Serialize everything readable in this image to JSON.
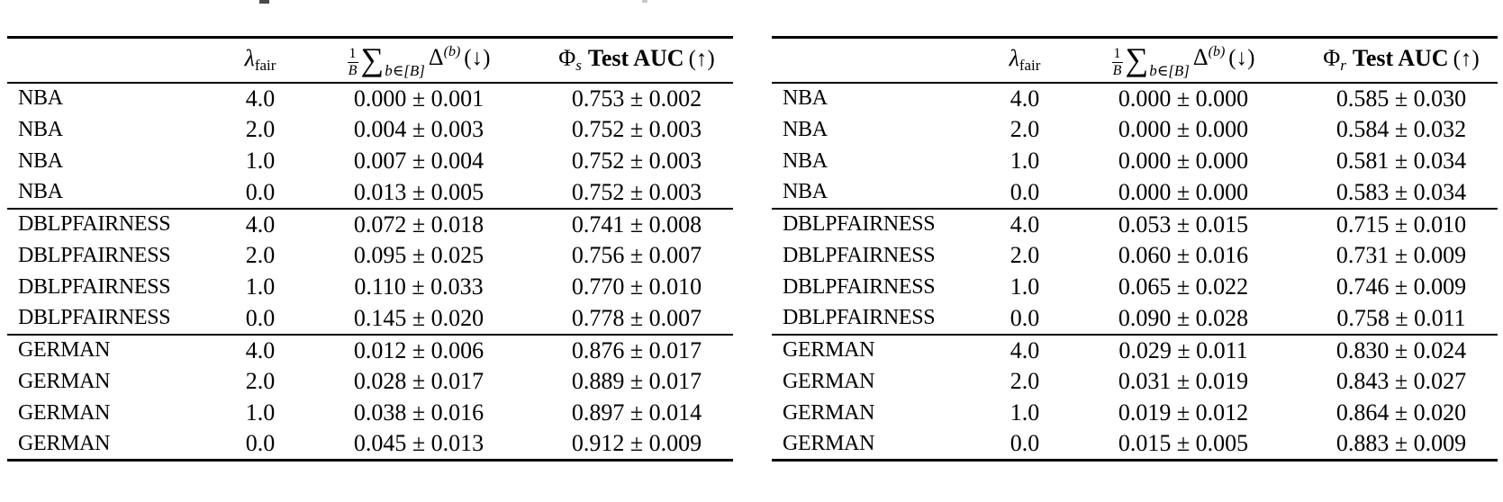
{
  "tables": [
    {
      "name": "phi-s-results-table",
      "header": {
        "lambda_symbol": "λ",
        "lambda_sub": "fair",
        "frac_num": "1",
        "frac_den": "B",
        "sum_symbol": "∑",
        "sum_sub": "b∈[B]",
        "delta_symbol": "Δ",
        "delta_sup": "(b)",
        "down_marker": "(↓)",
        "phi_symbol": "Φ",
        "phi_sub": "s",
        "auc_label": "Test AUC",
        "up_marker": "(↑)"
      },
      "groups": [
        {
          "rows": [
            {
              "dataset": "NBA",
              "lambda": "4.0",
              "delta": "0.000 ± 0.001",
              "auc": "0.753 ± 0.002"
            },
            {
              "dataset": "NBA",
              "lambda": "2.0",
              "delta": "0.004 ± 0.003",
              "auc": "0.752 ± 0.003"
            },
            {
              "dataset": "NBA",
              "lambda": "1.0",
              "delta": "0.007 ± 0.004",
              "auc": "0.752 ± 0.003"
            },
            {
              "dataset": "NBA",
              "lambda": "0.0",
              "delta": "0.013 ± 0.005",
              "auc": "0.752 ± 0.003"
            }
          ]
        },
        {
          "rows": [
            {
              "dataset": "DBLPFAIRNESS",
              "lambda": "4.0",
              "delta": "0.072 ± 0.018",
              "auc": "0.741 ± 0.008"
            },
            {
              "dataset": "DBLPFAIRNESS",
              "lambda": "2.0",
              "delta": "0.095 ± 0.025",
              "auc": "0.756 ± 0.007"
            },
            {
              "dataset": "DBLPFAIRNESS",
              "lambda": "1.0",
              "delta": "0.110 ± 0.033",
              "auc": "0.770 ± 0.010"
            },
            {
              "dataset": "DBLPFAIRNESS",
              "lambda": "0.0",
              "delta": "0.145 ± 0.020",
              "auc": "0.778 ± 0.007"
            }
          ]
        },
        {
          "rows": [
            {
              "dataset": "GERMAN",
              "lambda": "4.0",
              "delta": "0.012 ± 0.006",
              "auc": "0.876 ± 0.017"
            },
            {
              "dataset": "GERMAN",
              "lambda": "2.0",
              "delta": "0.028 ± 0.017",
              "auc": "0.889 ± 0.017"
            },
            {
              "dataset": "GERMAN",
              "lambda": "1.0",
              "delta": "0.038 ± 0.016",
              "auc": "0.897 ± 0.014"
            },
            {
              "dataset": "GERMAN",
              "lambda": "0.0",
              "delta": "0.045 ± 0.013",
              "auc": "0.912 ± 0.009"
            }
          ]
        }
      ]
    },
    {
      "name": "phi-r-results-table",
      "header": {
        "lambda_symbol": "λ",
        "lambda_sub": "fair",
        "frac_num": "1",
        "frac_den": "B",
        "sum_symbol": "∑",
        "sum_sub": "b∈[B]",
        "delta_symbol": "Δ",
        "delta_sup": "(b)",
        "down_marker": "(↓)",
        "phi_symbol": "Φ",
        "phi_sub": "r",
        "auc_label": "Test AUC",
        "up_marker": "(↑)"
      },
      "groups": [
        {
          "rows": [
            {
              "dataset": "NBA",
              "lambda": "4.0",
              "delta": "0.000 ± 0.000",
              "auc": "0.585 ± 0.030"
            },
            {
              "dataset": "NBA",
              "lambda": "2.0",
              "delta": "0.000 ± 0.000",
              "auc": "0.584 ± 0.032"
            },
            {
              "dataset": "NBA",
              "lambda": "1.0",
              "delta": "0.000 ± 0.000",
              "auc": "0.581 ± 0.034"
            },
            {
              "dataset": "NBA",
              "lambda": "0.0",
              "delta": "0.000 ± 0.000",
              "auc": "0.583 ± 0.034"
            }
          ]
        },
        {
          "rows": [
            {
              "dataset": "DBLPFAIRNESS",
              "lambda": "4.0",
              "delta": "0.053 ± 0.015",
              "auc": "0.715 ± 0.010"
            },
            {
              "dataset": "DBLPFAIRNESS",
              "lambda": "2.0",
              "delta": "0.060 ± 0.016",
              "auc": "0.731 ± 0.009"
            },
            {
              "dataset": "DBLPFAIRNESS",
              "lambda": "1.0",
              "delta": "0.065 ± 0.022",
              "auc": "0.746 ± 0.009"
            },
            {
              "dataset": "DBLPFAIRNESS",
              "lambda": "0.0",
              "delta": "0.090 ± 0.028",
              "auc": "0.758 ± 0.011"
            }
          ]
        },
        {
          "rows": [
            {
              "dataset": "GERMAN",
              "lambda": "4.0",
              "delta": "0.029 ± 0.011",
              "auc": "0.830 ± 0.024"
            },
            {
              "dataset": "GERMAN",
              "lambda": "2.0",
              "delta": "0.031 ± 0.019",
              "auc": "0.843 ± 0.027"
            },
            {
              "dataset": "GERMAN",
              "lambda": "1.0",
              "delta": "0.019 ± 0.012",
              "auc": "0.864 ± 0.020"
            },
            {
              "dataset": "GERMAN",
              "lambda": "0.0",
              "delta": "0.015 ± 0.005",
              "auc": "0.883 ± 0.009"
            }
          ]
        }
      ]
    }
  ]
}
